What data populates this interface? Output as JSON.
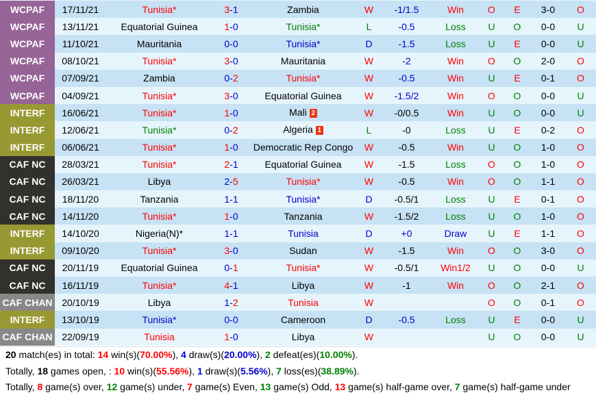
{
  "colors": {
    "win": "#ff0000",
    "draw": "#0000cc",
    "loss": "#008000",
    "row_odd": "#c6e2f4",
    "row_even": "#e6f4fc",
    "comp_wcpaf": "#966496",
    "comp_interf": "#999933",
    "comp_cafnc": "#33312d",
    "comp_cafchan": "#888888"
  },
  "matches": [
    {
      "comp": "WCPAF",
      "comp_class": "wcpaf",
      "date": "17/11/21",
      "home": "Tunisia*",
      "home_color": "red",
      "score_h": "3",
      "score_h_color": "red",
      "score_a": "1",
      "score_a_color": "blue",
      "away": "Zambia",
      "away_color": "black",
      "result": "W",
      "result_color": "red",
      "hcap": "-1/1.5",
      "hcap_color": "blue",
      "ah": "Win",
      "ah_color": "red",
      "ou": "O",
      "ou_color": "red",
      "oe": "E",
      "oe_color": "red",
      "ht": "3-0",
      "htou": "O",
      "htou_color": "red"
    },
    {
      "comp": "WCPAF",
      "comp_class": "wcpaf",
      "date": "13/11/21",
      "home": "Equatorial Guinea",
      "home_color": "black",
      "score_h": "1",
      "score_h_color": "red",
      "score_a": "0",
      "score_a_color": "blue",
      "away": "Tunisia*",
      "away_color": "green",
      "result": "L",
      "result_color": "green",
      "hcap": "-0.5",
      "hcap_color": "blue",
      "ah": "Loss",
      "ah_color": "green",
      "ou": "U",
      "ou_color": "green",
      "oe": "O",
      "oe_color": "green",
      "ht": "0-0",
      "htou": "U",
      "htou_color": "green"
    },
    {
      "comp": "WCPAF",
      "comp_class": "wcpaf",
      "date": "11/10/21",
      "home": "Mauritania",
      "home_color": "black",
      "score_h": "0",
      "score_h_color": "blue",
      "score_a": "0",
      "score_a_color": "blue",
      "away": "Tunisia*",
      "away_color": "blue",
      "result": "D",
      "result_color": "blue",
      "hcap": "-1.5",
      "hcap_color": "blue",
      "ah": "Loss",
      "ah_color": "green",
      "ou": "U",
      "ou_color": "green",
      "oe": "E",
      "oe_color": "red",
      "ht": "0-0",
      "htou": "U",
      "htou_color": "green"
    },
    {
      "comp": "WCPAF",
      "comp_class": "wcpaf",
      "date": "08/10/21",
      "home": "Tunisia*",
      "home_color": "red",
      "score_h": "3",
      "score_h_color": "red",
      "score_a": "0",
      "score_a_color": "blue",
      "away": "Mauritania",
      "away_color": "black",
      "result": "W",
      "result_color": "red",
      "hcap": "-2",
      "hcap_color": "blue",
      "ah": "Win",
      "ah_color": "red",
      "ou": "O",
      "ou_color": "red",
      "oe": "O",
      "oe_color": "green",
      "ht": "2-0",
      "htou": "O",
      "htou_color": "red"
    },
    {
      "comp": "WCPAF",
      "comp_class": "wcpaf",
      "date": "07/09/21",
      "home": "Zambia",
      "home_color": "black",
      "score_h": "0",
      "score_h_color": "blue",
      "score_a": "2",
      "score_a_color": "red",
      "away": "Tunisia*",
      "away_color": "red",
      "result": "W",
      "result_color": "red",
      "hcap": "-0.5",
      "hcap_color": "blue",
      "ah": "Win",
      "ah_color": "red",
      "ou": "U",
      "ou_color": "green",
      "oe": "E",
      "oe_color": "red",
      "ht": "0-1",
      "htou": "O",
      "htou_color": "red"
    },
    {
      "comp": "WCPAF",
      "comp_class": "wcpaf",
      "date": "04/09/21",
      "home": "Tunisia*",
      "home_color": "red",
      "score_h": "3",
      "score_h_color": "red",
      "score_a": "0",
      "score_a_color": "blue",
      "away": "Equatorial Guinea",
      "away_color": "black",
      "result": "W",
      "result_color": "red",
      "hcap": "-1.5/2",
      "hcap_color": "blue",
      "ah": "Win",
      "ah_color": "red",
      "ou": "O",
      "ou_color": "red",
      "oe": "O",
      "oe_color": "green",
      "ht": "0-0",
      "htou": "U",
      "htou_color": "green"
    },
    {
      "comp": "INTERF",
      "comp_class": "interf",
      "date": "16/06/21",
      "home": "Tunisia*",
      "home_color": "red",
      "score_h": "1",
      "score_h_color": "red",
      "score_a": "0",
      "score_a_color": "blue",
      "away": "Mali",
      "away_color": "black",
      "away_card": "2",
      "result": "W",
      "result_color": "red",
      "hcap": "-0/0.5",
      "hcap_color": "black",
      "ah": "Win",
      "ah_color": "red",
      "ou": "U",
      "ou_color": "green",
      "oe": "O",
      "oe_color": "green",
      "ht": "0-0",
      "htou": "U",
      "htou_color": "green"
    },
    {
      "comp": "INTERF",
      "comp_class": "interf",
      "date": "12/06/21",
      "home": "Tunisia*",
      "home_color": "green",
      "score_h": "0",
      "score_h_color": "blue",
      "score_a": "2",
      "score_a_color": "red",
      "away": "Algeria",
      "away_color": "black",
      "away_card": "1",
      "result": "L",
      "result_color": "green",
      "hcap": "-0",
      "hcap_color": "black",
      "ah": "Loss",
      "ah_color": "green",
      "ou": "U",
      "ou_color": "green",
      "oe": "E",
      "oe_color": "red",
      "ht": "0-2",
      "htou": "O",
      "htou_color": "red"
    },
    {
      "comp": "INTERF",
      "comp_class": "interf",
      "date": "06/06/21",
      "home": "Tunisia*",
      "home_color": "red",
      "score_h": "1",
      "score_h_color": "red",
      "score_a": "0",
      "score_a_color": "blue",
      "away": "Democratic Rep Congo",
      "away_color": "black",
      "result": "W",
      "result_color": "red",
      "hcap": "-0.5",
      "hcap_color": "black",
      "ah": "Win",
      "ah_color": "red",
      "ou": "U",
      "ou_color": "green",
      "oe": "O",
      "oe_color": "green",
      "ht": "1-0",
      "htou": "O",
      "htou_color": "red"
    },
    {
      "comp": "CAF NC",
      "comp_class": "cafnc",
      "date": "28/03/21",
      "home": "Tunisia*",
      "home_color": "red",
      "score_h": "2",
      "score_h_color": "red",
      "score_a": "1",
      "score_a_color": "blue",
      "away": "Equatorial Guinea",
      "away_color": "black",
      "result": "W",
      "result_color": "red",
      "hcap": "-1.5",
      "hcap_color": "black",
      "ah": "Loss",
      "ah_color": "green",
      "ou": "O",
      "ou_color": "red",
      "oe": "O",
      "oe_color": "green",
      "ht": "1-0",
      "htou": "O",
      "htou_color": "red"
    },
    {
      "comp": "CAF NC",
      "comp_class": "cafnc",
      "date": "26/03/21",
      "home": "Libya",
      "home_color": "black",
      "score_h": "2",
      "score_h_color": "blue",
      "score_a": "5",
      "score_a_color": "red",
      "away": "Tunisia*",
      "away_color": "red",
      "result": "W",
      "result_color": "red",
      "hcap": "-0.5",
      "hcap_color": "black",
      "ah": "Win",
      "ah_color": "red",
      "ou": "O",
      "ou_color": "red",
      "oe": "O",
      "oe_color": "green",
      "ht": "1-1",
      "htou": "O",
      "htou_color": "red"
    },
    {
      "comp": "CAF NC",
      "comp_class": "cafnc",
      "date": "18/11/20",
      "home": "Tanzania",
      "home_color": "black",
      "score_h": "1",
      "score_h_color": "blue",
      "score_a": "1",
      "score_a_color": "blue",
      "away": "Tunisia*",
      "away_color": "blue",
      "result": "D",
      "result_color": "blue",
      "hcap": "-0.5/1",
      "hcap_color": "black",
      "ah": "Loss",
      "ah_color": "green",
      "ou": "U",
      "ou_color": "green",
      "oe": "E",
      "oe_color": "red",
      "ht": "0-1",
      "htou": "O",
      "htou_color": "red"
    },
    {
      "comp": "CAF NC",
      "comp_class": "cafnc",
      "date": "14/11/20",
      "home": "Tunisia*",
      "home_color": "red",
      "score_h": "1",
      "score_h_color": "red",
      "score_a": "0",
      "score_a_color": "blue",
      "away": "Tanzania",
      "away_color": "black",
      "result": "W",
      "result_color": "red",
      "hcap": "-1.5/2",
      "hcap_color": "black",
      "ah": "Loss",
      "ah_color": "green",
      "ou": "U",
      "ou_color": "green",
      "oe": "O",
      "oe_color": "green",
      "ht": "1-0",
      "htou": "O",
      "htou_color": "red"
    },
    {
      "comp": "INTERF",
      "comp_class": "interf",
      "date": "14/10/20",
      "home": "Nigeria(N)*",
      "home_color": "black",
      "score_h": "1",
      "score_h_color": "blue",
      "score_a": "1",
      "score_a_color": "blue",
      "away": "Tunisia",
      "away_color": "blue",
      "result": "D",
      "result_color": "blue",
      "hcap": "+0",
      "hcap_color": "blue",
      "ah": "Draw",
      "ah_color": "blue",
      "ou": "U",
      "ou_color": "green",
      "oe": "E",
      "oe_color": "red",
      "ht": "1-1",
      "htou": "O",
      "htou_color": "red"
    },
    {
      "comp": "INTERF",
      "comp_class": "interf",
      "date": "09/10/20",
      "home": "Tunisia*",
      "home_color": "red",
      "score_h": "3",
      "score_h_color": "red",
      "score_a": "0",
      "score_a_color": "blue",
      "away": "Sudan",
      "away_color": "black",
      "result": "W",
      "result_color": "red",
      "hcap": "-1.5",
      "hcap_color": "black",
      "ah": "Win",
      "ah_color": "red",
      "ou": "O",
      "ou_color": "red",
      "oe": "O",
      "oe_color": "green",
      "ht": "3-0",
      "htou": "O",
      "htou_color": "red"
    },
    {
      "comp": "CAF NC",
      "comp_class": "cafnc",
      "date": "20/11/19",
      "home": "Equatorial Guinea",
      "home_color": "black",
      "score_h": "0",
      "score_h_color": "blue",
      "score_a": "1",
      "score_a_color": "red",
      "away": "Tunisia*",
      "away_color": "red",
      "result": "W",
      "result_color": "red",
      "hcap": "-0.5/1",
      "hcap_color": "black",
      "ah": "Win1/2",
      "ah_color": "red",
      "ou": "U",
      "ou_color": "green",
      "oe": "O",
      "oe_color": "green",
      "ht": "0-0",
      "htou": "U",
      "htou_color": "green"
    },
    {
      "comp": "CAF NC",
      "comp_class": "cafnc",
      "date": "16/11/19",
      "home": "Tunisia*",
      "home_color": "red",
      "score_h": "4",
      "score_h_color": "red",
      "score_a": "1",
      "score_a_color": "blue",
      "away": "Libya",
      "away_color": "black",
      "result": "W",
      "result_color": "red",
      "hcap": "-1",
      "hcap_color": "black",
      "ah": "Win",
      "ah_color": "red",
      "ou": "O",
      "ou_color": "red",
      "oe": "O",
      "oe_color": "green",
      "ht": "2-1",
      "htou": "O",
      "htou_color": "red"
    },
    {
      "comp": "CAF CHAN",
      "comp_class": "cafchan",
      "date": "20/10/19",
      "home": "Libya",
      "home_color": "black",
      "score_h": "1",
      "score_h_color": "blue",
      "score_a": "2",
      "score_a_color": "red",
      "away": "Tunisia",
      "away_color": "red",
      "result": "W",
      "result_color": "red",
      "hcap": "",
      "hcap_color": "black",
      "ah": "",
      "ah_color": "black",
      "ou": "O",
      "ou_color": "red",
      "oe": "O",
      "oe_color": "green",
      "ht": "0-1",
      "htou": "O",
      "htou_color": "red"
    },
    {
      "comp": "INTERF",
      "comp_class": "interf",
      "date": "13/10/19",
      "home": "Tunisia*",
      "home_color": "blue",
      "score_h": "0",
      "score_h_color": "blue",
      "score_a": "0",
      "score_a_color": "blue",
      "away": "Cameroon",
      "away_color": "black",
      "result": "D",
      "result_color": "blue",
      "hcap": "-0.5",
      "hcap_color": "blue",
      "ah": "Loss",
      "ah_color": "green",
      "ou": "U",
      "ou_color": "green",
      "oe": "E",
      "oe_color": "red",
      "ht": "0-0",
      "htou": "U",
      "htou_color": "green"
    },
    {
      "comp": "CAF CHAN",
      "comp_class": "cafchan",
      "date": "22/09/19",
      "home": "Tunisia",
      "home_color": "red",
      "score_h": "1",
      "score_h_color": "red",
      "score_a": "0",
      "score_a_color": "blue",
      "away": "Libya",
      "away_color": "black",
      "result": "W",
      "result_color": "red",
      "hcap": "",
      "hcap_color": "black",
      "ah": "",
      "ah_color": "black",
      "ou": "U",
      "ou_color": "green",
      "oe": "O",
      "oe_color": "green",
      "ht": "0-0",
      "htou": "U",
      "htou_color": "green"
    }
  ],
  "summary": {
    "line1": {
      "total": "20",
      "total_text": " match(es) in total: ",
      "wins": "14",
      "wins_text": " win(s)(",
      "wins_pct": "70.00%",
      "sep1": "), ",
      "draws": "4",
      "draws_text": " draw(s)(",
      "draws_pct": "20.00%",
      "sep2": "), ",
      "defeats": "2",
      "defeats_text": " defeat(es)(",
      "defeats_pct": "10.00%",
      "end": ")."
    },
    "line2": {
      "prefix": "Totally, ",
      "open": "18",
      "open_text": " games open, : ",
      "wins": "10",
      "wins_text": " win(s)(",
      "wins_pct": "55.56%",
      "sep1": "), ",
      "draws": "1",
      "draws_text": " draw(s)(",
      "draws_pct": "5.56%",
      "sep2": "), ",
      "losses": "7",
      "losses_text": " loss(es)(",
      "losses_pct": "38.89%",
      "end": ")."
    },
    "line3": {
      "prefix": "Totally, ",
      "over": "8",
      "over_text": " game(s) over, ",
      "under": "12",
      "under_text": " game(s) under, ",
      "even": "7",
      "even_text": " game(s) Even, ",
      "odd": "13",
      "odd_text": " game(s) Odd, ",
      "hg_over": "13",
      "hg_over_text": " game(s) half-game over, ",
      "hg_under": "7",
      "hg_under_text": " game(s) half-game under"
    }
  }
}
